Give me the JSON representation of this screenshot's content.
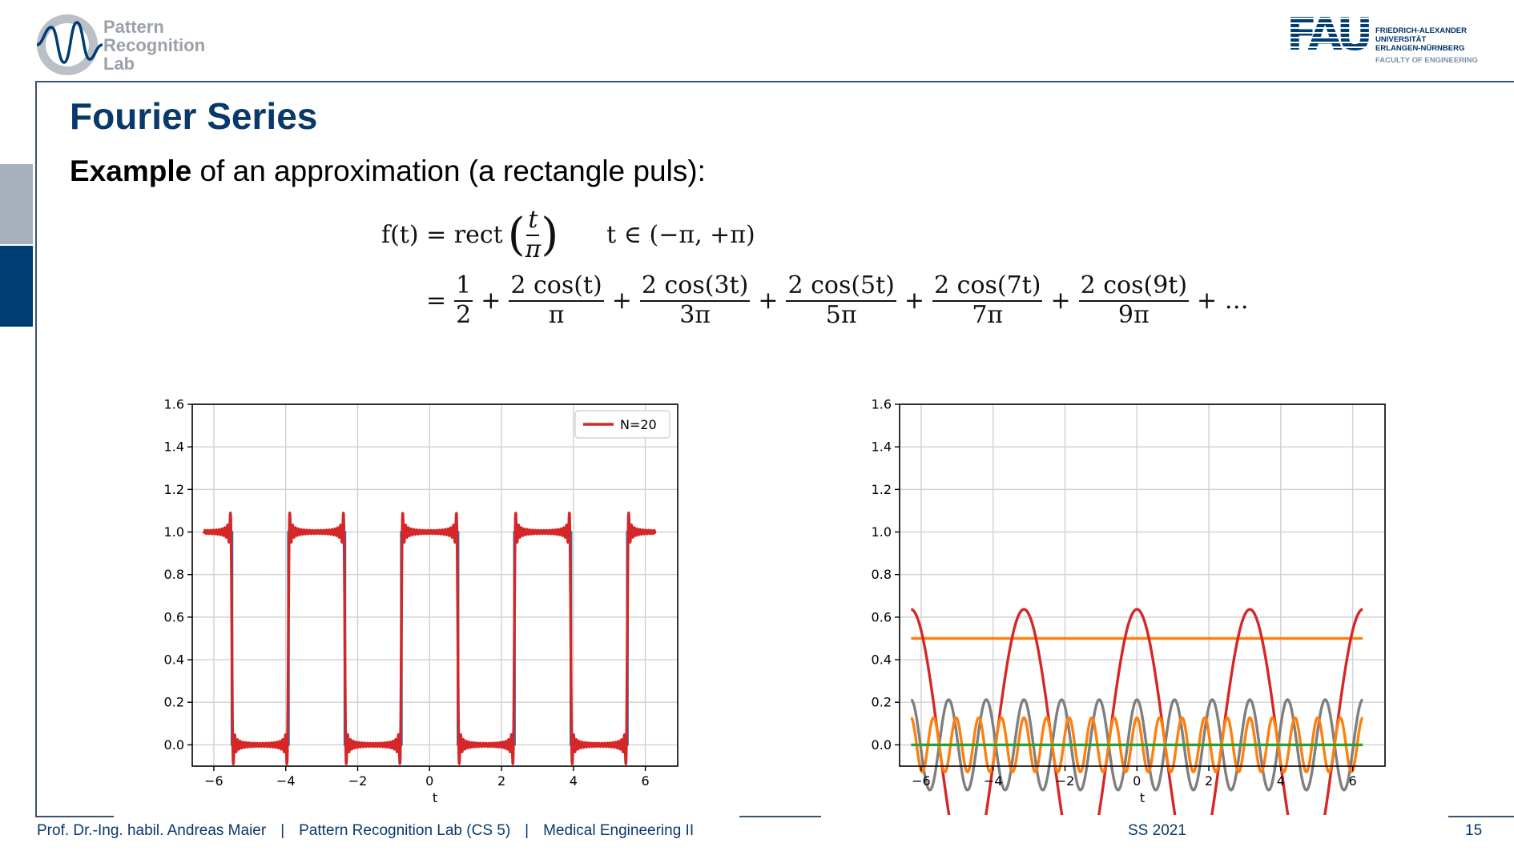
{
  "header": {
    "lab_logo_lines": [
      "Pattern",
      "Recognition",
      "Lab"
    ],
    "university_lines": [
      "FRIEDRICH-ALEXANDER",
      "UNIVERSITÄT",
      "ERLANGEN-NÜRNBERG"
    ],
    "faculty": "FACULTY OF ENGINEERING",
    "university_logo_text": "FAU"
  },
  "slide": {
    "title": "Fourier Series",
    "subtitle_bold": "Example",
    "subtitle_rest": " of an approximation (a rectangle puls):"
  },
  "equations": {
    "line1": {
      "lhs": "f(t) = rect",
      "frac_num": "t",
      "frac_den": "π",
      "domain": "t ∈ (−π, +π)"
    },
    "line2": {
      "terms": [
        {
          "num": "1",
          "den": "2"
        },
        {
          "num": "2 cos(t)",
          "den": "π"
        },
        {
          "num": "2 cos(3t)",
          "den": "3π"
        },
        {
          "num": "2 cos(5t)",
          "den": "5π"
        },
        {
          "num": "2 cos(7t)",
          "den": "7π"
        },
        {
          "num": "2 cos(9t)",
          "den": "9π"
        }
      ],
      "ellipsis": "+ …"
    }
  },
  "chart_data": [
    {
      "type": "line",
      "xlabel": "t",
      "ylabel": "",
      "xlim": [
        -6.6,
        6.9
      ],
      "ylim": [
        -0.1,
        1.6
      ],
      "xticks": [
        -6,
        -4,
        -2,
        0,
        2,
        4,
        6
      ],
      "xtick_labels": [
        "−6",
        "−4",
        "−2",
        "0",
        "2",
        "4",
        "6"
      ],
      "yticks": [
        0.0,
        0.2,
        0.4,
        0.6,
        0.8,
        1.0,
        1.2,
        1.4,
        1.6
      ],
      "ytick_labels": [
        "0.0",
        "0.2",
        "0.4",
        "0.6",
        "0.8",
        "1.0",
        "1.2",
        "1.4",
        "1.6"
      ],
      "grid": true,
      "legend": {
        "placement": "top-right",
        "entries": [
          "N=20"
        ]
      },
      "x_range_plotted": [
        -6.28,
        6.28
      ],
      "series": [
        {
          "color": "#1f77b4",
          "function": "rect(cos(2t) >= 0)"
        },
        {
          "name": "N=20",
          "color": "#d62728",
          "function": "fourier partial sum, N=20"
        }
      ]
    },
    {
      "type": "line",
      "xlabel": "t",
      "ylabel": "",
      "xlim": [
        -6.6,
        6.9
      ],
      "ylim": [
        -0.1,
        1.6
      ],
      "xticks": [
        -6,
        -4,
        -2,
        0,
        2,
        4,
        6
      ],
      "xtick_labels": [
        "−6",
        "−4",
        "−2",
        "0",
        "2",
        "4",
        "6"
      ],
      "yticks": [
        0.0,
        0.2,
        0.4,
        0.6,
        0.8,
        1.0,
        1.2,
        1.4,
        1.6
      ],
      "ytick_labels": [
        "0.0",
        "0.2",
        "0.4",
        "0.6",
        "0.8",
        "1.0",
        "1.2",
        "1.4",
        "1.6"
      ],
      "grid": true,
      "x_range_plotted": [
        -6.28,
        6.28
      ],
      "series": [
        {
          "color": "#ff7f0e",
          "function": "0.5"
        },
        {
          "color": "#d62728",
          "function": "2cos(2t)/π"
        },
        {
          "color": "#7f7f7f",
          "function": "2cos(6t)/(3π)"
        },
        {
          "color": "#ff7f0e",
          "function": "2cos(10t)/(5π)"
        },
        {
          "color": "#2ca02c",
          "function": "0"
        }
      ]
    }
  ],
  "footer": {
    "author": "Prof. Dr.-Ing. habil. Andreas Maier",
    "separator": "|",
    "lab": "Pattern Recognition Lab (CS 5)",
    "course": "Medical Engineering II",
    "term": "SS 2021",
    "page": "15"
  },
  "colors": {
    "title": "#08396a",
    "frame": "#3a5370",
    "side_tab_light": "#a7b1bb",
    "side_tab_dark": "#003d73"
  }
}
